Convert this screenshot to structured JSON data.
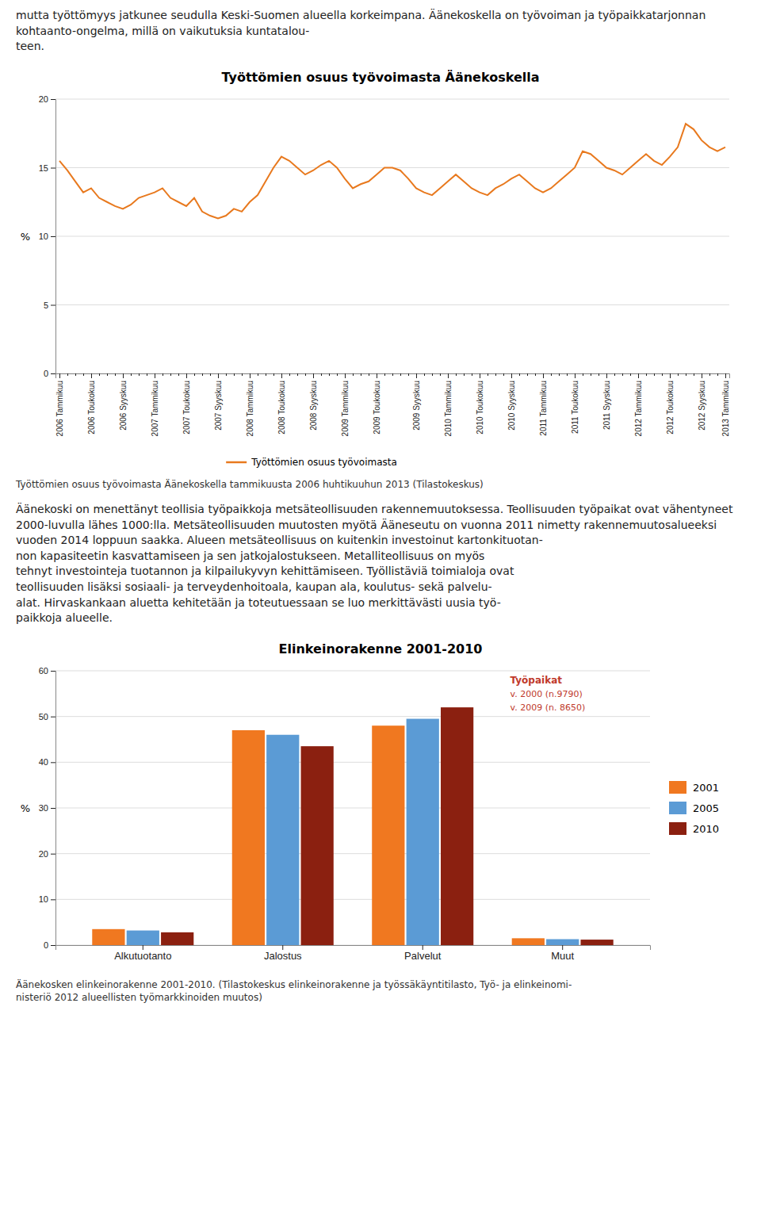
{
  "top_text": "mutta työttömyys jatkunee seudulla Keski-Suomen alueella korkeimpana. Äänekoskella on työvoiman ja työpaikkatarjonnan kohtaanto-ongelma, millä on vaikutuksia kuntatalou-\nteen.",
  "middle_text": "Äänekoski on menettänyt teollisia työpaikkoja metsäteollisuuden rakennemuutoksessa. Teollisuuden työpaikat ovat vähentyneet 2000-luvulla lähes 1000:lla. Metsäteollisuuden muutosten myötä Ääneseutu on vuonna 2011 nimetty rakennemuutosalueeksi vuoden 2014 loppuun saakka. Alueen metsäteollisuus on kuitenkin investoinut kartonkituotan-\nnon kapasiteetin kasvattamiseen ja sen jatkojalostukseen. Metalliteollisuus on myös\ntehnyt investointeja tuotannon ja kilpailukyvyn kehittämiseen. Työllistäviä toimialoja ovat\nteollisuuden lisäksi sosiaali- ja terveydenhoitoala, kaupan ala, koulutus- sekä palvelu-\nalat. Hirvaskankaan aluetta kehitetään ja toteutuessaan se luo merkittävästi uusia työ-\npaikkoja alueelle.",
  "chart_data": [
    {
      "type": "line",
      "title": "Työttömien osuus työvoimasta Äänekoskella",
      "ylabel": "%",
      "caption": "Työttömien osuus työvoimasta Äänekoskella tammikuusta 2006 huhtikuuhun 2013 (Tilastokeskus)",
      "categories": [
        "2006 Tammikuu",
        null,
        null,
        null,
        "2006 Toukokuu",
        null,
        null,
        null,
        "2006 Syyskuu",
        null,
        null,
        null,
        "2007 Tammikuu",
        null,
        null,
        null,
        "2007 Toukokuu",
        null,
        null,
        null,
        "2007 Syyskuu",
        null,
        null,
        null,
        "2008 Tammikuu",
        null,
        null,
        null,
        "2008 Toukokuu",
        null,
        null,
        null,
        "2008 Syyskuu",
        null,
        null,
        null,
        "2009 Tammikuu",
        null,
        null,
        null,
        "2009 Toukokuu",
        null,
        null,
        null,
        null,
        "2009 Syyskuu",
        null,
        null,
        null,
        "2010 Tammikuu",
        null,
        null,
        null,
        "2010 Toukokuu",
        null,
        null,
        null,
        "2010 Syyskuu",
        null,
        null,
        null,
        "2011 Tammikuu",
        null,
        null,
        null,
        "2011 Toukokuu",
        null,
        null,
        null,
        "2011 Syyskuu",
        null,
        null,
        null,
        "2012 Tammikuu",
        null,
        null,
        null,
        "2012 Toukokuu",
        null,
        null,
        null,
        "2012 Syyskuu",
        null,
        null,
        "2013 Tammikuu"
      ],
      "series": [
        {
          "name": "Työttömien osuus työvoimasta",
          "color": "#E8791E",
          "values": [
            15.5,
            14.8,
            14.0,
            13.2,
            13.5,
            12.8,
            12.5,
            12.2,
            12.0,
            12.3,
            12.8,
            13.0,
            13.2,
            13.5,
            12.8,
            12.5,
            12.2,
            12.8,
            11.8,
            11.5,
            11.3,
            11.5,
            12.0,
            11.8,
            12.5,
            13.0,
            14.0,
            15.0,
            15.8,
            15.5,
            15.0,
            14.5,
            14.8,
            15.2,
            15.5,
            15.0,
            14.2,
            13.5,
            13.8,
            14.0,
            14.5,
            15.0,
            15.0,
            14.8,
            14.2,
            13.5,
            13.2,
            13.0,
            13.5,
            14.0,
            14.5,
            14.0,
            13.5,
            13.2,
            13.0,
            13.5,
            13.8,
            14.2,
            14.5,
            14.0,
            13.5,
            13.2,
            13.5,
            14.0,
            14.5,
            15.0,
            16.2,
            16.0,
            15.5,
            15.0,
            14.8,
            14.5,
            15.0,
            15.5,
            16.0,
            15.5,
            15.2,
            15.8,
            16.5,
            18.2,
            17.8,
            17.0,
            16.5,
            16.2,
            16.5
          ]
        }
      ],
      "ylim": [
        0,
        20
      ],
      "yticks": [
        0,
        5,
        10,
        15,
        20
      ],
      "grid": true,
      "legend": "bottom"
    },
    {
      "type": "bar",
      "title": "Elinkeinorakenne 2001-2010",
      "ylabel": "%",
      "caption": "Äänekosken elinkeinorakenne 2001-2010. (Tilastokeskus elinkeinorakenne ja työssäkäyntitilasto, Työ- ja elinkeinomi-\nnisteriö 2012 alueellisten työmarkkinoiden muutos)",
      "categories": [
        "Alkutuotanto",
        "Jalostus",
        "Palvelut",
        "Muut"
      ],
      "series": [
        {
          "name": "2001",
          "color": "#F07820",
          "values": [
            3.5,
            47.0,
            48.0,
            1.5
          ]
        },
        {
          "name": "2005",
          "color": "#5B9BD5",
          "values": [
            3.2,
            46.0,
            49.5,
            1.3
          ]
        },
        {
          "name": "2010",
          "color": "#8B2010",
          "values": [
            2.8,
            43.5,
            52.0,
            1.2
          ]
        }
      ],
      "ylim": [
        0,
        60
      ],
      "yticks": [
        0,
        10,
        20,
        30,
        40,
        50,
        60
      ],
      "grid": true,
      "legend": "right",
      "annotations": [
        {
          "text": "Työpaikat",
          "color": "#C0392B"
        },
        {
          "text": "v. 2000 (n.9790)",
          "color": "#C0392B"
        },
        {
          "text": "v. 2009 (n. 8650)",
          "color": "#C0392B"
        }
      ]
    }
  ]
}
